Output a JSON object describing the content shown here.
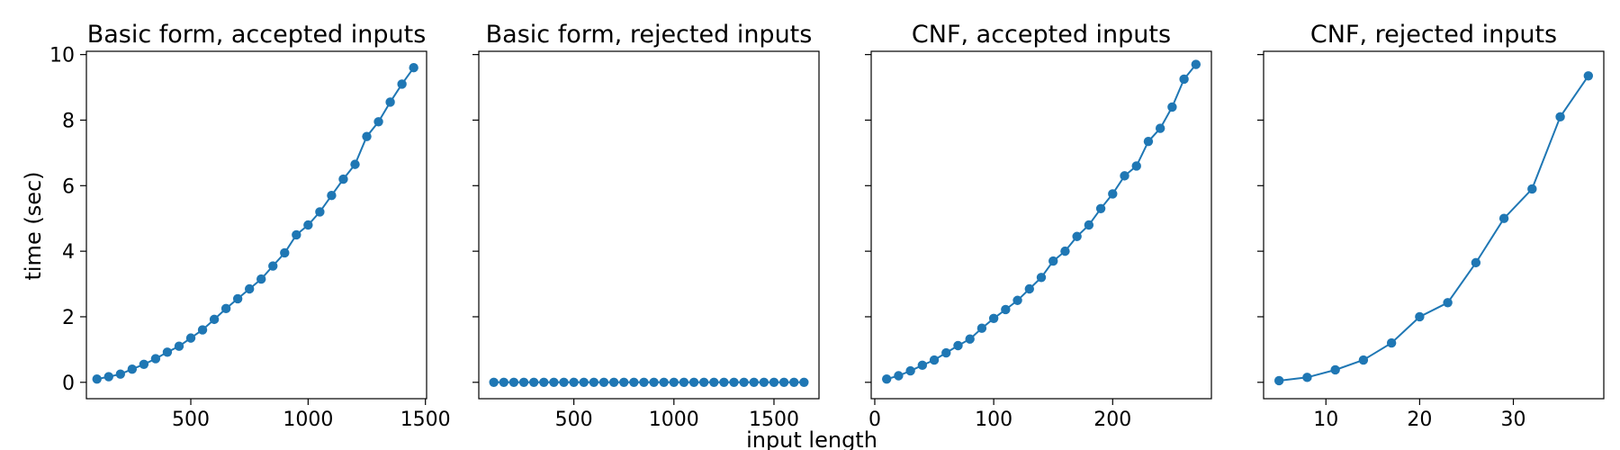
{
  "figure": {
    "xlabel": "input length",
    "ylabel": "time (sec)"
  },
  "colors": {
    "series": "#1f77b4",
    "axes": "#000000",
    "background": "#ffffff"
  },
  "chart_data": [
    {
      "type": "line",
      "title": "Basic form, accepted inputs",
      "xlim": [
        55,
        1505
      ],
      "ylim": [
        -0.5,
        10.1
      ],
      "xticks": [
        500,
        1000,
        1500
      ],
      "yticks": [
        0,
        2,
        4,
        6,
        8,
        10
      ],
      "grid": false,
      "series": [
        {
          "x": [
            100,
            150,
            200,
            250,
            300,
            350,
            400,
            450,
            500,
            550,
            600,
            650,
            700,
            750,
            800,
            850,
            900,
            950,
            1000,
            1050,
            1100,
            1150,
            1200,
            1250,
            1300,
            1350,
            1400,
            1450
          ],
          "y": [
            0.1,
            0.17,
            0.25,
            0.4,
            0.55,
            0.72,
            0.92,
            1.1,
            1.35,
            1.6,
            1.92,
            2.25,
            2.55,
            2.85,
            3.15,
            3.55,
            3.95,
            4.5,
            4.8,
            5.2,
            5.7,
            6.2,
            6.65,
            7.5,
            7.95,
            8.55,
            9.1,
            9.6
          ]
        }
      ]
    },
    {
      "type": "line",
      "title": "Basic form, rejected inputs",
      "xlim": [
        25,
        1725
      ],
      "ylim": [
        -0.5,
        10.1
      ],
      "xticks": [
        500,
        1000,
        1500
      ],
      "yticks": [
        0,
        2,
        4,
        6,
        8,
        10
      ],
      "grid": false,
      "series": [
        {
          "x": [
            100,
            150,
            200,
            250,
            300,
            350,
            400,
            450,
            500,
            550,
            600,
            650,
            700,
            750,
            800,
            850,
            900,
            950,
            1000,
            1050,
            1100,
            1150,
            1200,
            1250,
            1300,
            1350,
            1400,
            1450,
            1500,
            1550,
            1600,
            1650
          ],
          "y": [
            0,
            0,
            0,
            0,
            0,
            0,
            0,
            0,
            0,
            0,
            0,
            0,
            0,
            0,
            0,
            0,
            0,
            0,
            0,
            0,
            0,
            0,
            0,
            0,
            0,
            0,
            0,
            0,
            0,
            0,
            0,
            0
          ]
        }
      ]
    },
    {
      "type": "line",
      "title": "CNF, accepted inputs",
      "xlim": [
        -3,
        283
      ],
      "ylim": [
        -0.5,
        10.1
      ],
      "xticks": [
        0,
        100,
        200
      ],
      "yticks": [
        0,
        2,
        4,
        6,
        8,
        10
      ],
      "grid": false,
      "series": [
        {
          "x": [
            10,
            20,
            30,
            40,
            50,
            60,
            70,
            80,
            90,
            100,
            110,
            120,
            130,
            140,
            150,
            160,
            170,
            180,
            190,
            200,
            210,
            220,
            230,
            240,
            250,
            260,
            270
          ],
          "y": [
            0.1,
            0.2,
            0.35,
            0.52,
            0.68,
            0.9,
            1.12,
            1.32,
            1.65,
            1.95,
            2.22,
            2.5,
            2.85,
            3.2,
            3.7,
            4.0,
            4.45,
            4.8,
            5.3,
            5.75,
            6.3,
            6.6,
            7.35,
            7.75,
            8.4,
            9.25,
            9.7
          ]
        }
      ]
    },
    {
      "type": "line",
      "title": "CNF, rejected inputs",
      "xlim": [
        3.35,
        39.65
      ],
      "ylim": [
        -0.5,
        10.1
      ],
      "xticks": [
        10,
        20,
        30
      ],
      "yticks": [
        0,
        2,
        4,
        6,
        8,
        10
      ],
      "grid": false,
      "series": [
        {
          "x": [
            5,
            8,
            11,
            14,
            17,
            20,
            23,
            26,
            29,
            32,
            35,
            38
          ],
          "y": [
            0.05,
            0.15,
            0.38,
            0.68,
            1.2,
            2.0,
            2.43,
            3.65,
            5.0,
            5.9,
            8.1,
            9.35
          ]
        }
      ]
    }
  ]
}
